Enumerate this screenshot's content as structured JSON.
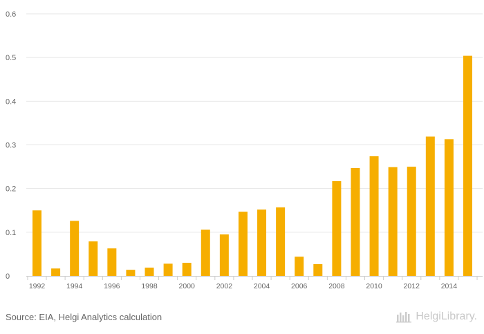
{
  "chart_data": {
    "type": "bar",
    "title": "",
    "xlabel": "",
    "ylabel": "",
    "ylim": [
      0,
      0.6
    ],
    "yticks": [
      "0",
      "0.1",
      "0.2",
      "0.3",
      "0.4",
      "0.5",
      "0.6"
    ],
    "categories": [
      "1992",
      "1993",
      "1994",
      "1995",
      "1996",
      "1997",
      "1998",
      "1999",
      "2000",
      "2001",
      "2002",
      "2003",
      "2004",
      "2005",
      "2006",
      "2007",
      "2008",
      "2009",
      "2010",
      "2011",
      "2012",
      "2013",
      "2014",
      "2015"
    ],
    "xtick_labels": [
      "1992",
      "",
      "1994",
      "",
      "1996",
      "",
      "1998",
      "",
      "2000",
      "",
      "2002",
      "",
      "2004",
      "",
      "2006",
      "",
      "2008",
      "",
      "2010",
      "",
      "2012",
      "",
      "2014",
      ""
    ],
    "values": [
      0.15,
      0.017,
      0.126,
      0.079,
      0.063,
      0.014,
      0.019,
      0.028,
      0.03,
      0.106,
      0.095,
      0.147,
      0.152,
      0.157,
      0.044,
      0.027,
      0.217,
      0.247,
      0.274,
      0.249,
      0.25,
      0.319,
      0.313,
      0.504
    ],
    "bar_color": "#f6ae00",
    "grid": true
  },
  "footer": {
    "source": "Source: EIA, Helgi Analytics calculation",
    "brand": "HelgiLibrary."
  }
}
